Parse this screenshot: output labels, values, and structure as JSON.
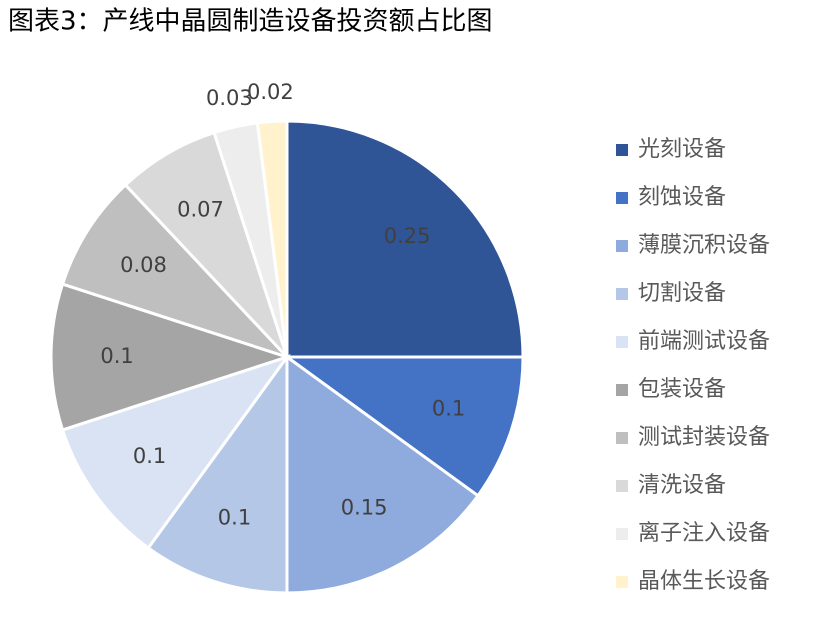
{
  "chart_data": {
    "type": "pie",
    "title": "图表3：产线中晶圆制造设备投资额占比图",
    "categories": [
      "光刻设备",
      "刻蚀设备",
      "薄膜沉积设备",
      "切割设备",
      "前端测试设备",
      "包装设备",
      "测试封装设备",
      "清洗设备",
      "离子注入设备",
      "晶体生长设备"
    ],
    "values": [
      0.25,
      0.1,
      0.15,
      0.1,
      0.1,
      0.1,
      0.08,
      0.07,
      0.03,
      0.02
    ],
    "colors": [
      "#2f5597",
      "#4472c4",
      "#8faadc",
      "#b4c7e7",
      "#dae3f3",
      "#a5a5a5",
      "#bfbfbf",
      "#d9d9d9",
      "#ededed",
      "#fff2cc"
    ],
    "legend": "right"
  }
}
